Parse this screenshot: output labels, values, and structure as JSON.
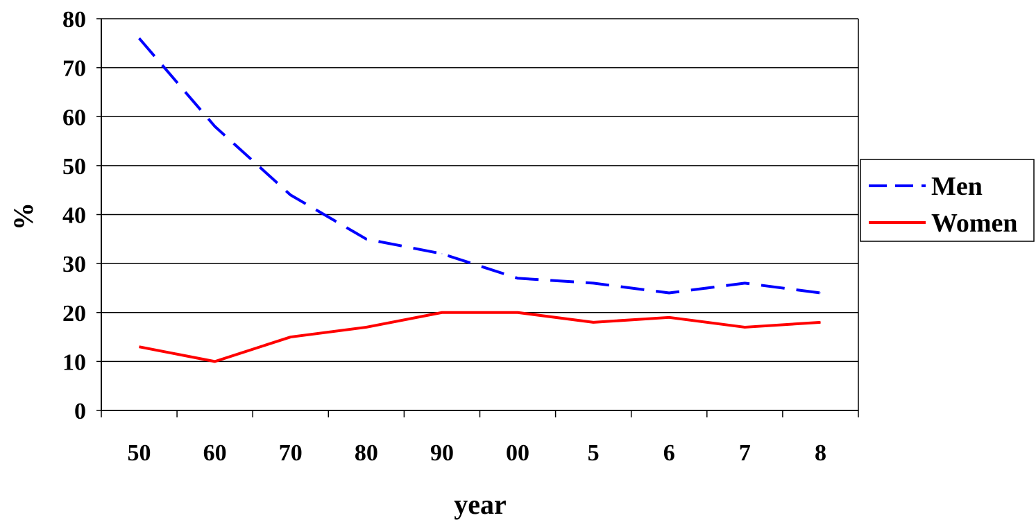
{
  "chart_data": {
    "type": "line",
    "categories": [
      "50",
      "60",
      "70",
      "80",
      "90",
      "00",
      "5",
      "6",
      "7",
      "8"
    ],
    "series": [
      {
        "name": "Men",
        "values": [
          76,
          58,
          44,
          35,
          32,
          27,
          26,
          24,
          26,
          24
        ],
        "color": "#0000ff",
        "style": "dashed"
      },
      {
        "name": "Women",
        "values": [
          13,
          10,
          15,
          17,
          20,
          20,
          18,
          19,
          17,
          18
        ],
        "color": "#ff0000",
        "style": "solid"
      }
    ],
    "xlabel": "year",
    "ylabel": "%",
    "ylim": [
      0,
      80
    ],
    "yticks": [
      "0",
      "10",
      "20",
      "30",
      "40",
      "50",
      "60",
      "70",
      "80"
    ],
    "grid": true,
    "legend_position": "right"
  }
}
